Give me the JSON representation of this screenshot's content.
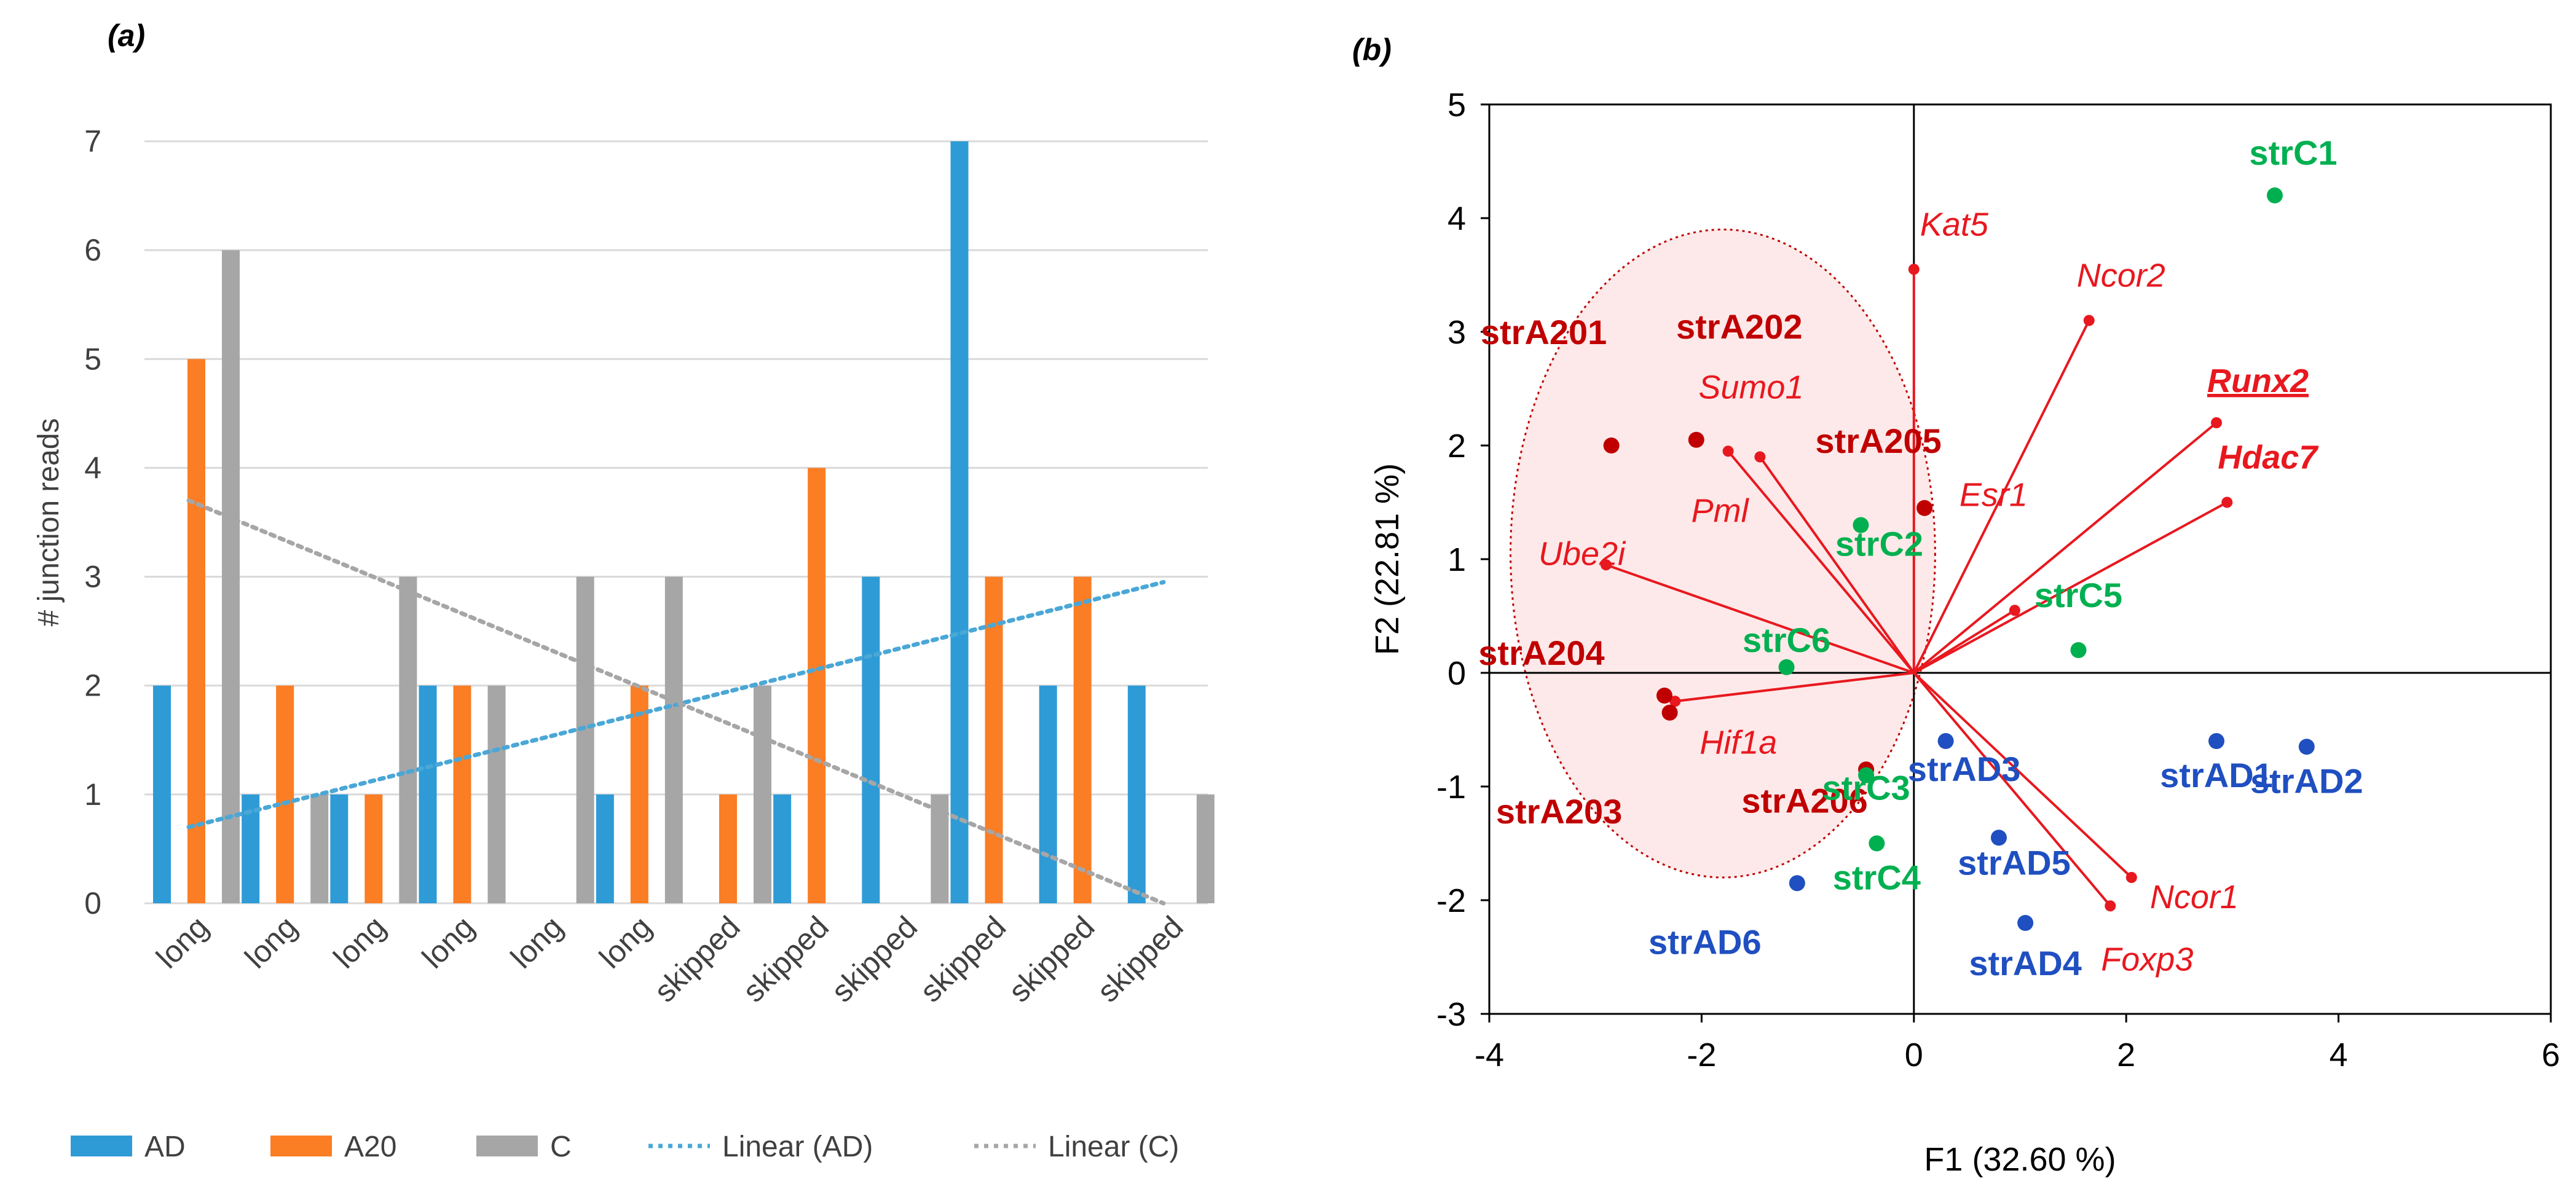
{
  "colors": {
    "AD": "#2e9bd6",
    "A20": "#fb7d24",
    "C": "#a6a6a6",
    "linear_ad": "#4aa7d6",
    "linear_c": "#a6a6a6",
    "grid": "#d9d9d9",
    "red": "#e8181f",
    "dark_red": "#c00000",
    "green": "#00b050",
    "blue": "#1f4fc0",
    "axis": "#000000",
    "ellipse_fill": "#fde4e4"
  },
  "chart_data": [
    {
      "type": "bar",
      "panel_label": "(a)",
      "title": "",
      "xlabel": "",
      "ylabel": "# junction reads",
      "ylim": [
        0,
        7
      ],
      "yticks": [
        "0",
        "1",
        "2",
        "3",
        "4",
        "5",
        "6",
        "7"
      ],
      "grid": true,
      "categories": [
        "long",
        "long",
        "long",
        "long",
        "long",
        "long",
        "skipped",
        "skipped",
        "skipped",
        "skipped",
        "skipped",
        "skipped"
      ],
      "series": [
        {
          "name": "AD",
          "values": [
            2,
            1,
            1,
            2,
            0,
            1,
            0,
            1,
            3,
            7,
            2,
            2
          ]
        },
        {
          "name": "A20",
          "values": [
            5,
            2,
            1,
            2,
            0,
            2,
            1,
            4,
            0,
            3,
            3,
            0
          ]
        },
        {
          "name": "C",
          "values": [
            6,
            1,
            3,
            2,
            3,
            3,
            2,
            0,
            1,
            0,
            0,
            1
          ]
        }
      ],
      "trendlines": [
        {
          "name": "Linear (AD)",
          "start": 0.7,
          "end": 2.95
        },
        {
          "name": "Linear (C)",
          "start": 3.7,
          "end": 0
        }
      ],
      "legend": [
        "AD",
        "A20",
        "C",
        "Linear (AD)",
        "Linear (C)"
      ],
      "legend_position": "bottom"
    },
    {
      "type": "scatter",
      "panel_label": "(b)",
      "xlabel": "F1 (32.60 %)",
      "ylabel": "F2 (22.81 %)",
      "xlim": [
        -4,
        6
      ],
      "ylim": [
        -3,
        5
      ],
      "xticks": [
        "-4",
        "-2",
        "0",
        "2",
        "4",
        "6"
      ],
      "yticks": [
        "-3",
        "-2",
        "-1",
        "0",
        "1",
        "2",
        "3",
        "4",
        "5"
      ],
      "vectors": [
        {
          "label": "Kat5",
          "x": 0.0,
          "y": 3.55
        },
        {
          "label": "Ncor2",
          "x": 1.65,
          "y": 3.1
        },
        {
          "label": "Runx2",
          "x": 2.85,
          "y": 2.2,
          "bold": true,
          "underline": true
        },
        {
          "label": "Hdac7",
          "x": 2.95,
          "y": 1.5,
          "bold": true
        },
        {
          "label": "Esr1",
          "x": 0.95,
          "y": 0.55
        },
        {
          "label": "Sumo1",
          "x": -1.45,
          "y": 1.9
        },
        {
          "label": "Pml",
          "x": -1.75,
          "y": 1.95
        },
        {
          "label": "Ube2i",
          "x": -2.9,
          "y": 0.95
        },
        {
          "label": "Hif1a",
          "x": -2.25,
          "y": -0.25
        },
        {
          "label": "Ncor1",
          "x": 2.05,
          "y": -1.8
        },
        {
          "label": "Foxp3",
          "x": 1.85,
          "y": -2.05
        }
      ],
      "observations": [
        {
          "label": "strA201",
          "group": "A20",
          "x": -2.85,
          "y": 2.0
        },
        {
          "label": "strA202",
          "group": "A20",
          "x": -2.05,
          "y": 2.05
        },
        {
          "label": "strA205",
          "group": "A20",
          "x": 0.1,
          "y": 1.45
        },
        {
          "label": "strA204",
          "group": "A20",
          "x": -2.35,
          "y": -0.2
        },
        {
          "label": "strA203",
          "group": "A20",
          "x": -2.3,
          "y": -0.35
        },
        {
          "label": "strA206",
          "group": "A20",
          "x": -0.45,
          "y": -0.85
        },
        {
          "label": "strC1",
          "group": "C",
          "x": 3.4,
          "y": 4.2
        },
        {
          "label": "strC2",
          "group": "C",
          "x": -0.5,
          "y": 1.3
        },
        {
          "label": "strC5",
          "group": "C",
          "x": 1.55,
          "y": 0.2
        },
        {
          "label": "strC6",
          "group": "C",
          "x": -1.2,
          "y": 0.05
        },
        {
          "label": "strC3",
          "group": "C",
          "x": -0.45,
          "y": -0.9
        },
        {
          "label": "strC4",
          "group": "C",
          "x": -0.35,
          "y": -1.5
        },
        {
          "label": "strAD1",
          "group": "AD",
          "x": 2.85,
          "y": -0.6
        },
        {
          "label": "strAD2",
          "group": "AD",
          "x": 3.7,
          "y": -0.65
        },
        {
          "label": "strAD3",
          "group": "AD",
          "x": 0.3,
          "y": -0.6
        },
        {
          "label": "strAD5",
          "group": "AD",
          "x": 0.8,
          "y": -1.45
        },
        {
          "label": "strAD4",
          "group": "AD",
          "x": 1.05,
          "y": -2.2
        },
        {
          "label": "strAD6",
          "group": "AD",
          "x": -1.1,
          "y": -1.85
        }
      ],
      "ellipse": {
        "cx": -1.8,
        "cy": 1.05,
        "rx": 2.0,
        "ry": 2.85
      }
    }
  ]
}
